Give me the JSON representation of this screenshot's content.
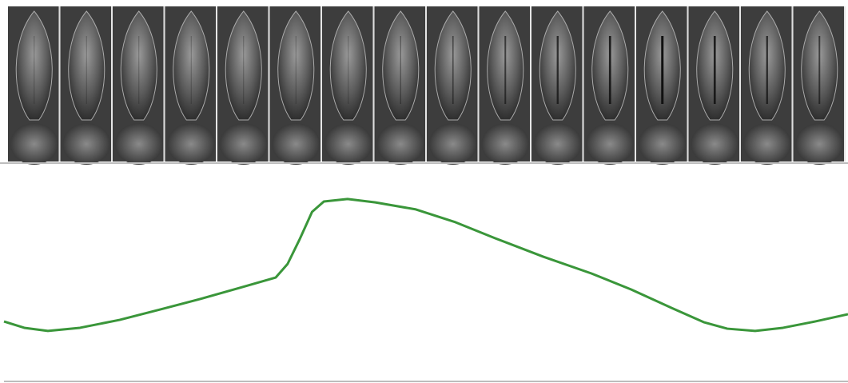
{
  "chart_data": {
    "type": "line",
    "x": [
      0,
      2.4,
      5.2,
      9,
      13.7,
      18.5,
      23.2,
      27.9,
      32.2,
      33.6,
      35.0,
      36.5,
      37.9,
      40.7,
      44.0,
      48.8,
      53.5,
      58.2,
      63.9,
      69.6,
      74.3,
      79.1,
      82.9,
      85.7,
      89,
      92.3,
      96.1,
      100
    ],
    "series": [
      {
        "color": "#3a963a",
        "values": [
          21.8,
          18.2,
          16.4,
          18.2,
          22.7,
          28.6,
          34.5,
          40.9,
          46.8,
          54.5,
          68.2,
          84.1,
          90,
          91.4,
          89.5,
          85.5,
          78.2,
          69.1,
          58.6,
          49.1,
          40,
          29.5,
          21.4,
          17.7,
          16.4,
          18.2,
          21.8,
          25.9
        ]
      }
    ],
    "xlim": [
      0,
      100
    ],
    "ylim": [
      0,
      100
    ]
  }
}
